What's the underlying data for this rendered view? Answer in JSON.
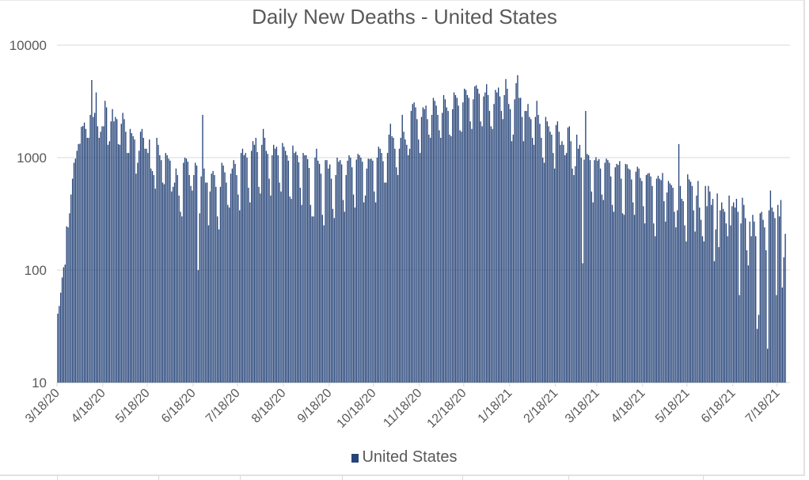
{
  "chart_data": {
    "type": "bar",
    "title": "Daily New Deaths - United States",
    "xlabel": "",
    "ylabel": "",
    "yscale": "log",
    "ylim": [
      10,
      10000
    ],
    "y_ticks": [
      "10",
      "100",
      "1000",
      "10000"
    ],
    "y_tick_values": [
      10,
      100,
      1000,
      10000
    ],
    "grid": true,
    "legend_position": "bottom",
    "start_date": "3/18/20",
    "end_date": "7/21/21",
    "x_tick_labels": [
      "3/18/20",
      "4/18/20",
      "5/18/20",
      "6/18/20",
      "7/18/20",
      "8/18/20",
      "9/18/20",
      "10/18/20",
      "11/18/20",
      "12/18/20",
      "1/18/21",
      "2/18/21",
      "3/18/21",
      "4/18/21",
      "5/18/21",
      "6/18/21",
      "7/18/21"
    ],
    "x_tick_day_offsets": [
      0,
      31,
      61,
      92,
      122,
      153,
      184,
      214,
      245,
      275,
      306,
      337,
      365,
      396,
      426,
      457,
      487
    ],
    "series": [
      {
        "name": "United States",
        "color": "#264478",
        "values": [
          41,
          48,
          63,
          86,
          106,
          112,
          245,
          240,
          320,
          470,
          650,
          900,
          980,
          1150,
          1320,
          1330,
          1880,
          1910,
          2050,
          1800,
          1500,
          1500,
          2400,
          4900,
          2300,
          2500,
          3800,
          1900,
          1500,
          1700,
          1900,
          1900,
          3200,
          2800,
          1300,
          1400,
          2100,
          2700,
          2100,
          2300,
          2200,
          1320,
          1300,
          2000,
          2500,
          2200,
          1700,
          1100,
          1100,
          1800,
          1650,
          1550,
          1450,
          720,
          900,
          1150,
          1700,
          1800,
          1500,
          1200,
          1200,
          1100,
          1450,
          800,
          760,
          700,
          530,
          1500,
          1300,
          1050,
          950,
          600,
          580,
          1100,
          1050,
          980,
          940,
          500,
          550,
          600,
          800,
          700,
          460,
          330,
          300,
          900,
          1000,
          980,
          920,
          700,
          560,
          510,
          700,
          900,
          850,
          100,
          320,
          680,
          2400,
          800,
          600,
          600,
          250,
          500,
          720,
          760,
          700,
          550,
          300,
          230,
          550,
          900,
          850,
          740,
          600,
          380,
          360,
          720,
          800,
          950,
          880,
          700,
          470,
          340,
          1100,
          1200,
          1050,
          1100,
          1000,
          540,
          400,
          1150,
          1400,
          1300,
          1500,
          1120,
          550,
          480,
          1300,
          1800,
          1500,
          1150,
          1080,
          650,
          460,
          1050,
          1300,
          1200,
          1250,
          1050,
          600,
          500,
          1350,
          1250,
          1150,
          1050,
          940,
          450,
          430,
          1280,
          1100,
          1130,
          1050,
          910,
          540,
          380,
          1100,
          1050,
          1050,
          970,
          810,
          380,
          300,
          300,
          1000,
          1200,
          940,
          880,
          720,
          310,
          250,
          950,
          950,
          800,
          870,
          650,
          350,
          290,
          700,
          1000,
          920,
          950,
          870,
          420,
          330,
          700,
          940,
          1050,
          1000,
          820,
          470,
          360,
          960,
          1080,
          1050,
          1000,
          920,
          400,
          460,
          800,
          980,
          970,
          980,
          940,
          500,
          400,
          1000,
          1250,
          1200,
          1100,
          930,
          600,
          600,
          1100,
          1600,
          2000,
          1550,
          1500,
          1200,
          820,
          700,
          1200,
          1500,
          2400,
          1700,
          1450,
          1300,
          1050,
          1200,
          2600,
          3000,
          3100,
          2800,
          2200,
          1450,
          1100,
          2300,
          2800,
          2700,
          2900,
          2200,
          1600,
          1500,
          2400,
          3400,
          3200,
          2900,
          2400,
          1750,
          1500,
          2500,
          3600,
          3300,
          2800,
          2600,
          1600,
          1550,
          2700,
          3800,
          3600,
          3400,
          2900,
          1750,
          1700,
          3100,
          4100,
          4000,
          3600,
          3400,
          2100,
          1800,
          3300,
          4300,
          4400,
          4100,
          3700,
          2100,
          1900,
          3500,
          3800,
          4500,
          3600,
          2600,
          1900,
          1800,
          3000,
          4000,
          3800,
          4200,
          3500,
          2600,
          2200,
          3600,
          5000,
          4100,
          3000,
          2700,
          1400,
          1600,
          3300,
          4600,
          5400,
          3400,
          3400,
          2300,
          1400,
          2600,
          2600,
          3000,
          2300,
          2200,
          1500,
          1300,
          2300,
          3200,
          2400,
          2000,
          1500,
          1000,
          900,
          2300,
          2100,
          1900,
          1700,
          1600,
          1100,
          800,
          1950,
          2100,
          1700,
          1300,
          1400,
          1300,
          1050,
          1100,
          1850,
          1900,
          1400,
          800,
          700,
          840,
          1600,
          1200,
          1300,
          1000,
          115,
          960,
          2600,
          1080,
          1050,
          950,
          500,
          400,
          950,
          1010,
          940,
          970,
          800,
          470,
          420,
          900,
          980,
          950,
          900,
          680,
          380,
          330,
          820,
          880,
          860,
          930,
          650,
          320,
          310,
          880,
          870,
          800,
          780,
          640,
          400,
          310,
          750,
          830,
          800,
          660,
          620,
          370,
          260,
          700,
          720,
          730,
          680,
          560,
          260,
          200,
          650,
          690,
          650,
          630,
          730,
          410,
          270,
          490,
          620,
          590,
          570,
          540,
          330,
          240,
          340,
          1320,
          560,
          430,
          410,
          250,
          180,
          710,
          640,
          610,
          560,
          340,
          220,
          460,
          620,
          360,
          280,
          200,
          180,
          560,
          370,
          560,
          500,
          380,
          430,
          120,
          230,
          480,
          160,
          340,
          400,
          350,
          330,
          260,
          200,
          460,
          250,
          370,
          400,
          360,
          430,
          330,
          60,
          260,
          440,
          380,
          290,
          150,
          110,
          270,
          200,
          310,
          270,
          200,
          30,
          40,
          320,
          330,
          280,
          240,
          150,
          20,
          340,
          510,
          360,
          330,
          290,
          60,
          380,
          300,
          420,
          70,
          130,
          210
        ]
      }
    ]
  },
  "legend": {
    "items": [
      {
        "label": "United States",
        "color": "#264478"
      }
    ]
  }
}
